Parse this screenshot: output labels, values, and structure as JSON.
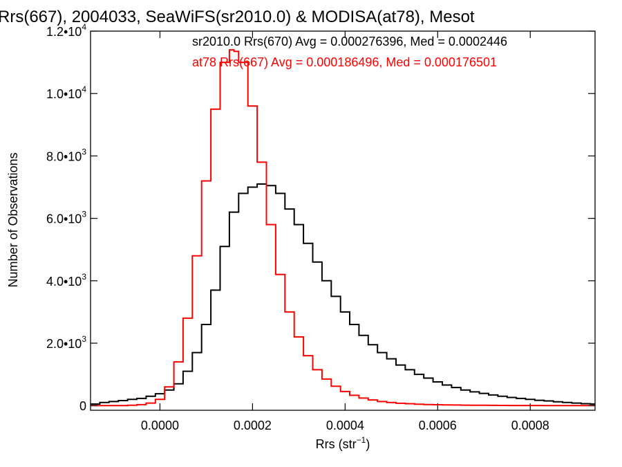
{
  "chart_data": {
    "type": "line",
    "title": "Rrs(667), 2004033, SeaWiFS(sr2010.0) & MODISA(at78), Mesot",
    "xlabel": "Rrs (str",
    "xlabel_sup": "−1",
    "xlabel_suffix": ")",
    "ylabel": "Number of Observations",
    "xlim": [
      -0.00015,
      0.00094
    ],
    "ylim": [
      -150,
      12000
    ],
    "grid": false,
    "step": true,
    "x_ticks": [
      {
        "value": 0.0,
        "label": "0.0000"
      },
      {
        "value": 0.0002,
        "label": "0.0002"
      },
      {
        "value": 0.0004,
        "label": "0.0004"
      },
      {
        "value": 0.0006,
        "label": "0.0006"
      },
      {
        "value": 0.0008,
        "label": "0.0008"
      }
    ],
    "y_ticks": [
      {
        "value": 0,
        "base": "0",
        "exp": ""
      },
      {
        "value": 2000,
        "base": "2.0•10",
        "exp": "3"
      },
      {
        "value": 4000,
        "base": "4.0•10",
        "exp": "3"
      },
      {
        "value": 6000,
        "base": "6.0•10",
        "exp": "3"
      },
      {
        "value": 8000,
        "base": "8.0•10",
        "exp": "3"
      },
      {
        "value": 10000,
        "base": "1.0•10",
        "exp": "4"
      },
      {
        "value": 12000,
        "base": "1.2•10",
        "exp": "4"
      }
    ],
    "annotations": [
      {
        "text": "sr2010.0 Rrs(670) Avg = 0.000276396, Med = 0.0002446",
        "color": "#000000"
      },
      {
        "text": "at78 Rrs(667) Avg = 0.000186496, Med = 0.000176501",
        "color": "#ff0000"
      }
    ],
    "series": [
      {
        "color": "#000000",
        "x": [
          -0.00015,
          -0.00013,
          -0.00011,
          -9e-05,
          -7e-05,
          -5e-05,
          -3e-05,
          -1e-05,
          1e-05,
          3e-05,
          5e-05,
          7e-05,
          9e-05,
          0.00011,
          0.00013,
          0.00015,
          0.00017,
          0.00019,
          0.00021,
          0.00023,
          0.00025,
          0.00027,
          0.00029,
          0.00031,
          0.00033,
          0.00035,
          0.00037,
          0.00039,
          0.00041,
          0.00043,
          0.00045,
          0.00047,
          0.00049,
          0.00051,
          0.00053,
          0.00055,
          0.00057,
          0.00059,
          0.00061,
          0.00063,
          0.00065,
          0.00067,
          0.00069,
          0.00071,
          0.00073,
          0.00075,
          0.00077,
          0.00079,
          0.00081,
          0.00083,
          0.00085,
          0.00087,
          0.00089,
          0.00091,
          0.00093
        ],
        "y": [
          50,
          100,
          130,
          160,
          200,
          230,
          300,
          380,
          500,
          700,
          1100,
          1700,
          2600,
          3700,
          5100,
          6200,
          6800,
          7000,
          7100,
          7050,
          6800,
          6300,
          5800,
          5200,
          4600,
          4000,
          3500,
          3000,
          2600,
          2250,
          1950,
          1700,
          1500,
          1300,
          1150,
          1000,
          880,
          760,
          660,
          580,
          500,
          440,
          390,
          340,
          300,
          260,
          230,
          200,
          170,
          150,
          120,
          100,
          80,
          60,
          50
        ]
      },
      {
        "color": "#ff0000",
        "x": [
          -0.00015,
          -0.00013,
          -0.00011,
          -9e-05,
          -7e-05,
          -5e-05,
          -3e-05,
          -1e-05,
          1e-05,
          3e-05,
          5e-05,
          7e-05,
          9e-05,
          0.00011,
          0.00013,
          0.00015,
          0.00016,
          0.00017,
          0.00019,
          0.00021,
          0.00023,
          0.00025,
          0.00027,
          0.00029,
          0.00031,
          0.00033,
          0.00035,
          0.00037,
          0.00039,
          0.00041,
          0.00043,
          0.00045,
          0.00047,
          0.00049,
          0.00051,
          0.00053,
          0.00055,
          0.00057,
          0.00059,
          0.00061,
          0.00063,
          0.00065,
          0.00067,
          0.00069,
          0.00071,
          0.00073,
          0.00075,
          0.00077,
          0.00079,
          0.00081,
          0.00083,
          0.00085,
          0.00087,
          0.00089,
          0.00091,
          0.00093
        ],
        "y": [
          0,
          0,
          0,
          0,
          10,
          30,
          80,
          200,
          600,
          1400,
          2800,
          4800,
          7200,
          9500,
          11000,
          11400,
          11350,
          11000,
          9600,
          7800,
          5800,
          4200,
          3000,
          2200,
          1600,
          1150,
          850,
          620,
          450,
          330,
          240,
          180,
          130,
          100,
          75,
          60,
          45,
          35,
          28,
          22,
          18,
          14,
          11,
          9,
          7,
          5,
          4,
          3,
          2,
          2,
          1,
          1,
          0,
          0,
          0,
          0
        ]
      }
    ]
  }
}
